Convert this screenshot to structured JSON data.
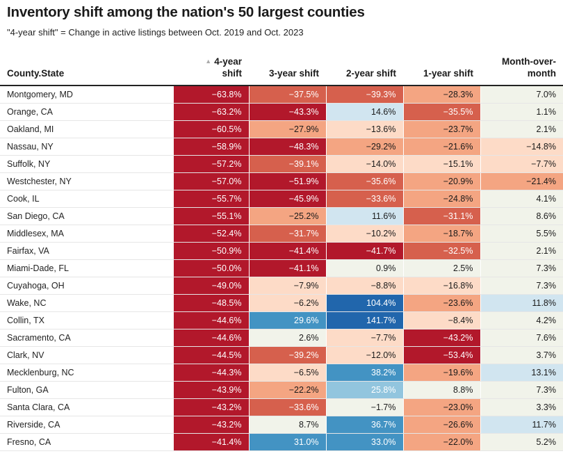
{
  "title": "Inventory shift among the nation's 50 largest counties",
  "subtitle": "\"4-year shift\" = Change in active listings between Oct. 2019 and Oct. 2023",
  "chart_data": {
    "type": "table",
    "columns": [
      "County.State",
      "4-year shift",
      "3-year shift",
      "2-year shift",
      "1-year shift",
      "Month-over-month"
    ],
    "header_labels": {
      "county": "County.State",
      "shift4_line1": "4-year",
      "shift4_line2": "shift",
      "shift3": "3-year shift",
      "shift2": "2-year shift",
      "shift1": "1-year shift",
      "mom_line1": "Month-over-",
      "mom_line2": "month"
    },
    "sort_indicator": "▲",
    "sorted_column": "4-year shift",
    "colors": {
      "strong_red": "#b2182b",
      "red": "#d6604d",
      "light_red": "#f4a582",
      "pale_red": "#fddbc7",
      "neutral": "#f1f3ea",
      "pale_blue": "#d1e5f0",
      "light_blue": "#92c5de",
      "blue": "#4393c3",
      "strong_blue": "#2166ac"
    },
    "rows": [
      {
        "county": "Montgomery, MD",
        "values": [
          -63.8,
          -37.5,
          -39.3,
          -28.3,
          7.0
        ],
        "labels": [
          "−63.8%",
          "−37.5%",
          "−39.3%",
          "−28.3%",
          "7.0%"
        ]
      },
      {
        "county": "Orange, CA",
        "values": [
          -63.2,
          -43.3,
          14.6,
          -35.5,
          1.1
        ],
        "labels": [
          "−63.2%",
          "−43.3%",
          "14.6%",
          "−35.5%",
          "1.1%"
        ]
      },
      {
        "county": "Oakland, MI",
        "values": [
          -60.5,
          -27.9,
          -13.6,
          -23.7,
          2.1
        ],
        "labels": [
          "−60.5%",
          "−27.9%",
          "−13.6%",
          "−23.7%",
          "2.1%"
        ]
      },
      {
        "county": "Nassau, NY",
        "values": [
          -58.9,
          -48.3,
          -29.2,
          -21.6,
          -14.8
        ],
        "labels": [
          "−58.9%",
          "−48.3%",
          "−29.2%",
          "−21.6%",
          "−14.8%"
        ]
      },
      {
        "county": "Suffolk, NY",
        "values": [
          -57.2,
          -39.1,
          -14.0,
          -15.1,
          -7.7
        ],
        "labels": [
          "−57.2%",
          "−39.1%",
          "−14.0%",
          "−15.1%",
          "−7.7%"
        ]
      },
      {
        "county": "Westchester, NY",
        "values": [
          -57.0,
          -51.9,
          -35.6,
          -20.9,
          -21.4
        ],
        "labels": [
          "−57.0%",
          "−51.9%",
          "−35.6%",
          "−20.9%",
          "−21.4%"
        ]
      },
      {
        "county": "Cook, IL",
        "values": [
          -55.7,
          -45.9,
          -33.6,
          -24.8,
          4.1
        ],
        "labels": [
          "−55.7%",
          "−45.9%",
          "−33.6%",
          "−24.8%",
          "4.1%"
        ]
      },
      {
        "county": "San Diego, CA",
        "values": [
          -55.1,
          -25.2,
          11.6,
          -31.1,
          8.6
        ],
        "labels": [
          "−55.1%",
          "−25.2%",
          "11.6%",
          "−31.1%",
          "8.6%"
        ]
      },
      {
        "county": "Middlesex, MA",
        "values": [
          -52.4,
          -31.7,
          -10.2,
          -18.7,
          5.5
        ],
        "labels": [
          "−52.4%",
          "−31.7%",
          "−10.2%",
          "−18.7%",
          "5.5%"
        ]
      },
      {
        "county": "Fairfax, VA",
        "values": [
          -50.9,
          -41.4,
          -41.7,
          -32.5,
          2.1
        ],
        "labels": [
          "−50.9%",
          "−41.4%",
          "−41.7%",
          "−32.5%",
          "2.1%"
        ]
      },
      {
        "county": "Miami-Dade, FL",
        "values": [
          -50.0,
          -41.1,
          0.9,
          2.5,
          7.3
        ],
        "labels": [
          "−50.0%",
          "−41.1%",
          "0.9%",
          "2.5%",
          "7.3%"
        ]
      },
      {
        "county": "Cuyahoga, OH",
        "values": [
          -49.0,
          -7.9,
          -8.8,
          -16.8,
          7.3
        ],
        "labels": [
          "−49.0%",
          "−7.9%",
          "−8.8%",
          "−16.8%",
          "7.3%"
        ]
      },
      {
        "county": "Wake, NC",
        "values": [
          -48.5,
          -6.2,
          104.4,
          -23.6,
          11.8
        ],
        "labels": [
          "−48.5%",
          "−6.2%",
          "104.4%",
          "−23.6%",
          "11.8%"
        ]
      },
      {
        "county": "Collin, TX",
        "values": [
          -44.6,
          29.6,
          141.7,
          -8.4,
          4.2
        ],
        "labels": [
          "−44.6%",
          "29.6%",
          "141.7%",
          "−8.4%",
          "4.2%"
        ]
      },
      {
        "county": "Sacramento, CA",
        "values": [
          -44.6,
          2.6,
          -7.7,
          -43.2,
          7.6
        ],
        "labels": [
          "−44.6%",
          "2.6%",
          "−7.7%",
          "−43.2%",
          "7.6%"
        ]
      },
      {
        "county": "Clark, NV",
        "values": [
          -44.5,
          -39.2,
          -12.0,
          -53.4,
          3.7
        ],
        "labels": [
          "−44.5%",
          "−39.2%",
          "−12.0%",
          "−53.4%",
          "3.7%"
        ]
      },
      {
        "county": "Mecklenburg, NC",
        "values": [
          -44.3,
          -6.5,
          38.2,
          -19.6,
          13.1
        ],
        "labels": [
          "−44.3%",
          "−6.5%",
          "38.2%",
          "−19.6%",
          "13.1%"
        ]
      },
      {
        "county": "Fulton, GA",
        "values": [
          -43.9,
          -22.2,
          25.8,
          8.8,
          7.3
        ],
        "labels": [
          "−43.9%",
          "−22.2%",
          "25.8%",
          "8.8%",
          "7.3%"
        ]
      },
      {
        "county": "Santa Clara, CA",
        "values": [
          -43.2,
          -33.6,
          -1.7,
          -23.0,
          3.3
        ],
        "labels": [
          "−43.2%",
          "−33.6%",
          "−1.7%",
          "−23.0%",
          "3.3%"
        ]
      },
      {
        "county": "Riverside, CA",
        "values": [
          -43.2,
          8.7,
          36.7,
          -26.6,
          11.7
        ],
        "labels": [
          "−43.2%",
          "8.7%",
          "36.7%",
          "−26.6%",
          "11.7%"
        ]
      },
      {
        "county": "Fresno, CA",
        "values": [
          -41.4,
          31.0,
          33.0,
          -22.0,
          5.2
        ],
        "labels": [
          "−41.4%",
          "31.0%",
          "33.0%",
          "−22.0%",
          "5.2%"
        ]
      }
    ]
  }
}
